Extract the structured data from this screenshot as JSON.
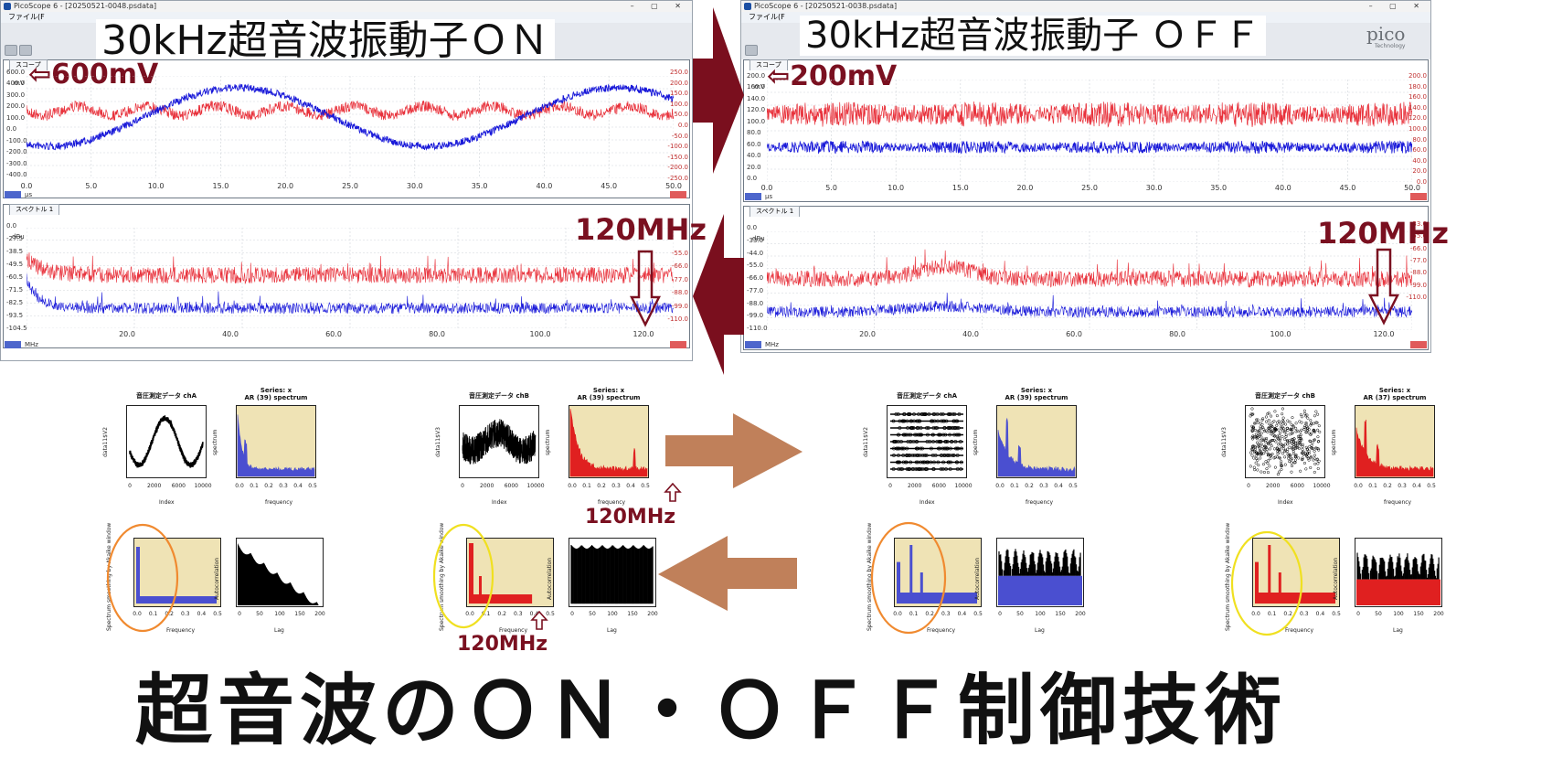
{
  "windows": [
    {
      "id": "left",
      "title": "PicoScope 6 - [20250521-0048.psdata]",
      "menu": "ファイル(F",
      "overlay_title": "30kHz超音波振動子ＯＮ",
      "scope_tab": "スコープ",
      "scope_marker": "⇦600mV",
      "scope_unit": "μs",
      "scope_left_unit": "mV",
      "scope_left_ticks": [
        "600.0",
        "400.0",
        "300.0",
        "200.0",
        "100.0",
        "0.0",
        "-100.0",
        "-200.0",
        "-300.0",
        "-400.0"
      ],
      "scope_right_ticks": [
        "250.0",
        "200.0",
        "150.0",
        "100.0",
        "50.0",
        "0.0",
        "-50.0",
        "-100.0",
        "-150.0",
        "-200.0",
        "-250.0"
      ],
      "scope_x_ticks": [
        "0.0",
        "5.0",
        "10.0",
        "15.0",
        "20.0",
        "25.0",
        "30.0",
        "35.0",
        "40.0",
        "45.0",
        "50.0"
      ],
      "spectrum_tab": "スペクトル 1",
      "spectrum_marker": "120MHz",
      "spectrum_unit": "MHz",
      "spectrum_left_unit": "dBu",
      "spectrum_left_ticks": [
        "0.0",
        "-27.5",
        "-38.5",
        "-49.5",
        "-60.5",
        "-71.5",
        "-82.5",
        "-93.5",
        "-104.5"
      ],
      "spectrum_right_ticks": [
        "-55.0",
        "-66.0",
        "-77.0",
        "-88.0",
        "-99.0",
        "-110.0"
      ],
      "spectrum_x_ticks": [
        "20.0",
        "40.0",
        "60.0",
        "80.0",
        "100.0",
        "120.0"
      ]
    },
    {
      "id": "right",
      "title": "PicoScope 6 - [20250521-0038.psdata]",
      "menu": "ファイル(F",
      "overlay_title": "30kHz超音波振動子 ＯＦＦ",
      "brand": "pico",
      "brand_sub": "Technology",
      "scope_tab": "スコープ",
      "scope_marker": "⇦200mV",
      "scope_unit": "μs",
      "scope_left_unit": "mV",
      "scope_left_ticks": [
        "200.0",
        "160.0",
        "140.0",
        "120.0",
        "100.0",
        "80.0",
        "60.0",
        "40.0",
        "20.0",
        "0.0"
      ],
      "scope_right_ticks": [
        "200.0",
        "180.0",
        "160.0",
        "140.0",
        "120.0",
        "100.0",
        "80.0",
        "60.0",
        "40.0",
        "20.0",
        "0.0"
      ],
      "scope_x_ticks": [
        "0.0",
        "5.0",
        "10.0",
        "15.0",
        "20.0",
        "25.0",
        "30.0",
        "35.0",
        "40.0",
        "45.0",
        "50.0"
      ],
      "spectrum_tab": "スペクトル 1",
      "spectrum_marker": "120MHz",
      "spectrum_unit": "MHz",
      "spectrum_left_unit": "dBu",
      "spectrum_left_ticks": [
        "0.0",
        "-33.0",
        "-44.0",
        "-55.0",
        "-66.0",
        "-77.0",
        "-88.0",
        "-99.0",
        "-110.0"
      ],
      "spectrum_right_ticks": [
        "-33.0",
        "-55.0",
        "-66.0",
        "-77.0",
        "-88.0",
        "-99.0",
        "-110.0"
      ],
      "spectrum_x_ticks": [
        "20.0",
        "40.0",
        "60.0",
        "80.0",
        "100.0",
        "120.0"
      ]
    }
  ],
  "r_plots": {
    "left": {
      "chA_title": "音圧測定データ chA",
      "chB_title": "音圧測定データ chB",
      "ar_title_A": "Series: x\nAR (39) spectrum",
      "ar_title_B": "Series: x\nAR (39) spectrum",
      "index_label": "Index",
      "frequency_label": "frequency",
      "Frequency_label": "Frequency",
      "lag_label": "Lag",
      "data_label": "data11$V2",
      "data_label_B": "data11$V3",
      "spectrum_label": "spectrum",
      "smooth_label": "Spectrum smoothing by Akaike window",
      "autocorr_label": "Autocorrelation",
      "index_ticks": [
        "0",
        "2000",
        "6000",
        "10000"
      ],
      "freq_ticks": [
        "0.0",
        "0.1",
        "0.2",
        "0.3",
        "0.4",
        "0.5"
      ],
      "lag_ticks": [
        "0",
        "50",
        "100",
        "150",
        "200"
      ],
      "marker_120": "120MHz"
    },
    "right": {
      "chA_title": "音圧測定データ chA",
      "chB_title": "音圧測定データ chB",
      "ar_title_A": "Series: x\nAR (39) spectrum",
      "ar_title_B": "Series: x\nAR (37) spectrum",
      "index_label": "Index",
      "frequency_label": "frequency",
      "Frequency_label": "Frequency",
      "lag_label": "Lag",
      "data_label": "data11$V2",
      "data_label_B": "data11$V3",
      "spectrum_label": "spectrum",
      "smooth_label": "Spectrum smoothing by Akaike window",
      "autocorr_label": "Autocorrelation",
      "index_ticks": [
        "0",
        "2000",
        "6000",
        "10000"
      ],
      "freq_ticks": [
        "0.0",
        "0.1",
        "0.2",
        "0.3",
        "0.4",
        "0.5"
      ],
      "lag_ticks": [
        "0",
        "50",
        "100",
        "150",
        "200"
      ]
    }
  },
  "footer": {
    "title": "超音波のＯＮ・ＯＦＦ制御技術"
  },
  "colors": {
    "channel_a": "#1a1ad9",
    "channel_b": "#e8303a",
    "marker": "#7a1020",
    "arrow_dark": "#7a0f1e",
    "arrow_brown": "#c0805a",
    "plot_bg": "#efe3b5",
    "ar_blue": "#4a4fd0",
    "ar_red": "#e02020",
    "circle_orange": "#f08a30",
    "circle_yellow": "#f0e020"
  }
}
